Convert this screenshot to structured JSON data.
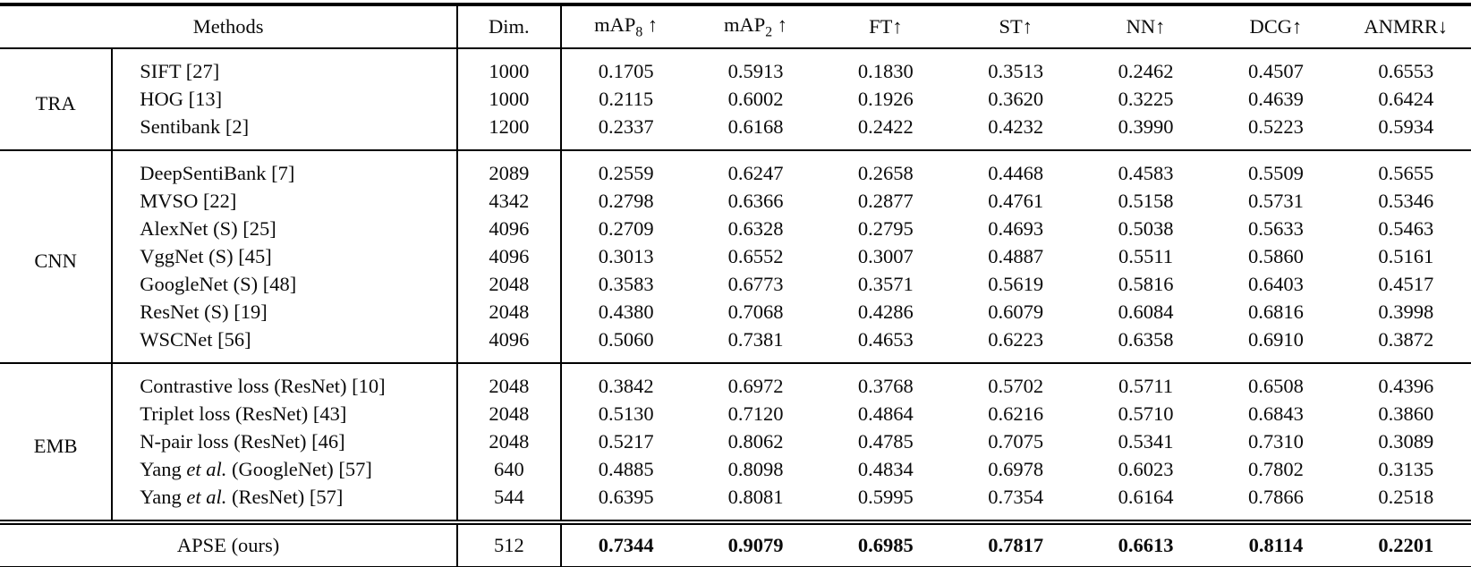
{
  "colors": {
    "rule": "#000000",
    "text": "#0b0b0b",
    "background": "#ffffff"
  },
  "table": {
    "columns": [
      {
        "id": "methods",
        "label": "Methods"
      },
      {
        "id": "dim",
        "label": "Dim."
      },
      {
        "id": "map8",
        "base": "mAP",
        "sub": "8",
        "suffix": " ↑"
      },
      {
        "id": "map2",
        "base": "mAP",
        "sub": "2",
        "suffix": " ↑"
      },
      {
        "id": "ft",
        "label": "FT↑"
      },
      {
        "id": "st",
        "label": "ST↑"
      },
      {
        "id": "nn",
        "label": "NN↑"
      },
      {
        "id": "dcg",
        "label": "DCG↑"
      },
      {
        "id": "anmrr",
        "label": "ANMRR↓"
      }
    ],
    "groups": [
      {
        "name": "TRA",
        "rows": [
          {
            "method": "SIFT [27]",
            "dim": "1000",
            "values": [
              "0.1705",
              "0.5913",
              "0.1830",
              "0.3513",
              "0.2462",
              "0.4507",
              "0.6553"
            ]
          },
          {
            "method": "HOG [13]",
            "dim": "1000",
            "values": [
              "0.2115",
              "0.6002",
              "0.1926",
              "0.3620",
              "0.3225",
              "0.4639",
              "0.6424"
            ]
          },
          {
            "method": "Sentibank [2]",
            "dim": "1200",
            "values": [
              "0.2337",
              "0.6168",
              "0.2422",
              "0.4232",
              "0.3990",
              "0.5223",
              "0.5934"
            ]
          }
        ]
      },
      {
        "name": "CNN",
        "rows": [
          {
            "method": "DeepSentiBank [7]",
            "dim": "2089",
            "values": [
              "0.2559",
              "0.6247",
              "0.2658",
              "0.4468",
              "0.4583",
              "0.5509",
              "0.5655"
            ]
          },
          {
            "method": "MVSO [22]",
            "dim": "4342",
            "values": [
              "0.2798",
              "0.6366",
              "0.2877",
              "0.4761",
              "0.5158",
              "0.5731",
              "0.5346"
            ]
          },
          {
            "method": "AlexNet (S) [25]",
            "dim": "4096",
            "values": [
              "0.2709",
              "0.6328",
              "0.2795",
              "0.4693",
              "0.5038",
              "0.5633",
              "0.5463"
            ]
          },
          {
            "method": "VggNet (S) [45]",
            "dim": "4096",
            "values": [
              "0.3013",
              "0.6552",
              "0.3007",
              "0.4887",
              "0.5511",
              "0.5860",
              "0.5161"
            ]
          },
          {
            "method": "GoogleNet (S) [48]",
            "dim": "2048",
            "values": [
              "0.3583",
              "0.6773",
              "0.3571",
              "0.5619",
              "0.5816",
              "0.6403",
              "0.4517"
            ]
          },
          {
            "method": "ResNet (S) [19]",
            "dim": "2048",
            "values": [
              "0.4380",
              "0.7068",
              "0.4286",
              "0.6079",
              "0.6084",
              "0.6816",
              "0.3998"
            ]
          },
          {
            "method": "WSCNet [56]",
            "dim": "4096",
            "values": [
              "0.5060",
              "0.7381",
              "0.4653",
              "0.6223",
              "0.6358",
              "0.6910",
              "0.3872"
            ]
          }
        ]
      },
      {
        "name": "EMB",
        "rows": [
          {
            "method": "Contrastive loss (ResNet) [10]",
            "dim": "2048",
            "values": [
              "0.3842",
              "0.6972",
              "0.3768",
              "0.5702",
              "0.5711",
              "0.6508",
              "0.4396"
            ]
          },
          {
            "method": "Triplet loss (ResNet) [43]",
            "dim": "2048",
            "values": [
              "0.5130",
              "0.7120",
              "0.4864",
              "0.6216",
              "0.5710",
              "0.6843",
              "0.3860"
            ]
          },
          {
            "method": "N-pair loss (ResNet) [46]",
            "dim": "2048",
            "values": [
              "0.5217",
              "0.8062",
              "0.4785",
              "0.7075",
              "0.5341",
              "0.7310",
              "0.3089"
            ]
          },
          {
            "method": "Yang {et al.} (GoogleNet) [57]",
            "dim": "640",
            "values": [
              "0.4885",
              "0.8098",
              "0.4834",
              "0.6978",
              "0.6023",
              "0.7802",
              "0.3135"
            ]
          },
          {
            "method": "Yang {et al.} (ResNet) [57]",
            "dim": "544",
            "values": [
              "0.6395",
              "0.8081",
              "0.5995",
              "0.7354",
              "0.6164",
              "0.7866",
              "0.2518"
            ]
          }
        ]
      }
    ],
    "footer": {
      "method": "APSE (ours)",
      "dim": "512",
      "values": [
        "0.7344",
        "0.9079",
        "0.6985",
        "0.7817",
        "0.6613",
        "0.8114",
        "0.2201"
      ]
    }
  }
}
